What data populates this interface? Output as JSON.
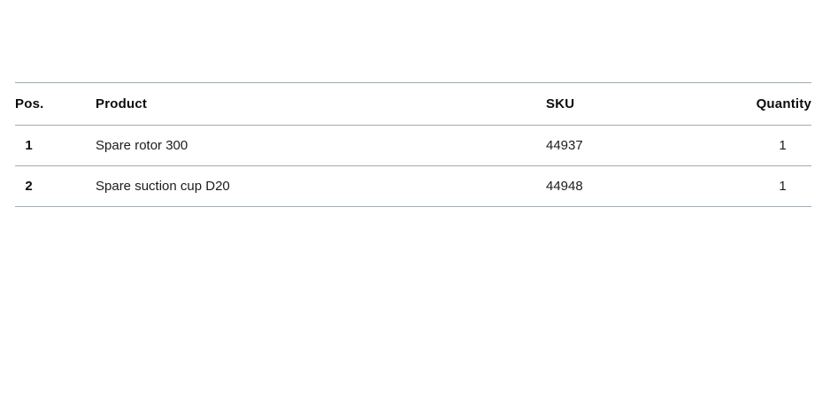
{
  "colors": {
    "background": "#ffffff",
    "divider": "#a2abb1",
    "header_text": "#0c0c0c",
    "body_text": "#1c1c1c"
  },
  "items_table": {
    "columns": [
      {
        "key": "pos",
        "label": "Pos."
      },
      {
        "key": "product",
        "label": "Product"
      },
      {
        "key": "sku",
        "label": "SKU"
      },
      {
        "key": "quantity",
        "label": "Quantity"
      }
    ],
    "rows": [
      {
        "pos": "1",
        "product": "Spare rotor 300",
        "sku": "44937",
        "quantity": "1"
      },
      {
        "pos": "2",
        "product": "Spare suction cup D20",
        "sku": "44948",
        "quantity": "1"
      }
    ]
  }
}
